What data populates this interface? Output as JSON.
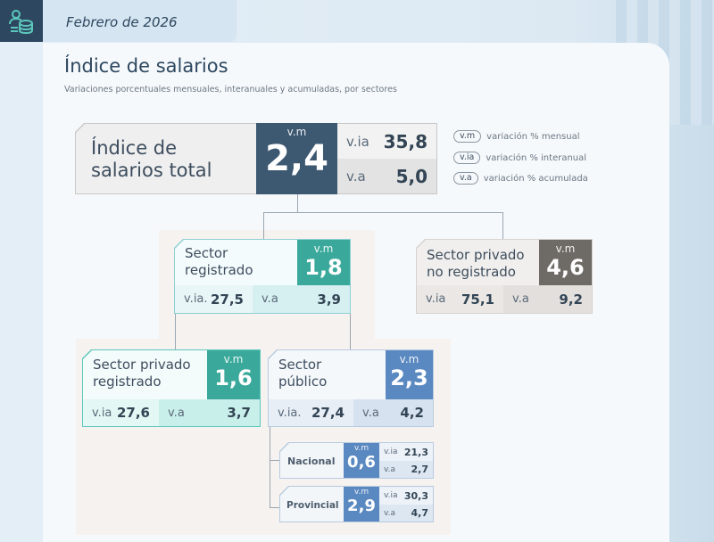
{
  "header": {
    "date": "Febrero de 2026",
    "icon": "coins-people-icon"
  },
  "title": "Índice de salarios",
  "subtitle": "Variaciones porcentuales mensuales, interanuales y acumuladas, por sectores",
  "legend": [
    {
      "abbr": "v.m",
      "text": "variación % mensual"
    },
    {
      "abbr": "v.ia",
      "text": "variación % interanual"
    },
    {
      "abbr": "v.a",
      "text": "variación % acumulada"
    }
  ],
  "total": {
    "label_1": "Índice de",
    "label_2": "salarios total",
    "vm_label": "v.m",
    "vm": "2,4",
    "via_label": "v.ia",
    "via": "35,8",
    "va_label": "v.a",
    "va": "5,0"
  },
  "registrado": {
    "label_1": "Sector",
    "label_2": "registrado",
    "vm_label": "v.m",
    "vm": "1,8",
    "via_label": "v.ia.",
    "via": "27,5",
    "va_label": "v.a",
    "va": "3,9"
  },
  "no_registrado": {
    "label_1": "Sector privado",
    "label_2": "no registrado",
    "vm_label": "v.m",
    "vm": "4,6",
    "via_label": "v.ia",
    "via": "75,1",
    "va_label": "v.a",
    "va": "9,2"
  },
  "privado_registrado": {
    "label_1": "Sector privado",
    "label_2": "registrado",
    "vm_label": "v.m",
    "vm": "1,6",
    "via_label": "v.ia",
    "via": "27,6",
    "va_label": "v.a",
    "va": "3,7"
  },
  "publico": {
    "label_1": "Sector",
    "label_2": "público",
    "vm_label": "v.m",
    "vm": "2,3",
    "via_label": "v.ia.",
    "via": "27,4",
    "va_label": "v.a",
    "va": "4,2"
  },
  "nacional": {
    "label": "Nacional",
    "vm_label": "v.m",
    "vm": "0,6",
    "via_label": "v.ia",
    "via": "21,3",
    "va_label": "v.a",
    "va": "2,7"
  },
  "provincial": {
    "label": "Provincial",
    "vm_label": "v.m",
    "vm": "2,9",
    "via_label": "v.ia",
    "via": "30,3",
    "va_label": "v.a",
    "va": "4,7"
  },
  "colors": {
    "navy": "#3d5871",
    "teal": "#3aa99b",
    "gray": "#6e6a66",
    "blue": "#5a88c0"
  }
}
